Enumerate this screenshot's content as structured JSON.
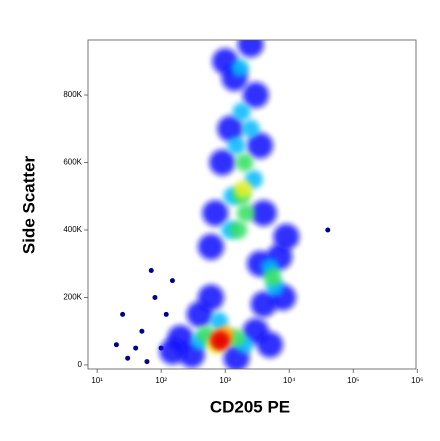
{
  "chart_data": {
    "type": "scatter",
    "x_label": "CD205 PE",
    "y_label": "Side Scatter",
    "xscale": "log",
    "xlim": [
      7.2,
      955000
    ],
    "xticks": [
      {
        "value": 10,
        "label": "10¹"
      },
      {
        "value": 100,
        "label": "10²"
      },
      {
        "value": 1000,
        "label": "10³"
      },
      {
        "value": 10000,
        "label": "10⁴"
      },
      {
        "value": 100000,
        "label": "10⁵"
      },
      {
        "value": 1000000,
        "label": "10⁶"
      }
    ],
    "ylim": [
      -12000,
      963000
    ],
    "yticks": [
      0,
      {
        "value": 200000,
        "label": "200K"
      },
      {
        "value": 400000,
        "label": "400K"
      },
      {
        "value": 600000,
        "label": "600K"
      },
      {
        "value": 800000,
        "label": "800K"
      }
    ],
    "x": [
      30,
      50,
      80,
      100,
      40,
      150,
      120,
      20,
      60,
      40000,
      25,
      70,
      1000,
      1400,
      1200,
      900,
      700,
      600,
      3000,
      3500,
      4000,
      2500,
      3500,
      7000,
      8000,
      4000,
      9000,
      200,
      300,
      400,
      3000,
      5000,
      1500,
      150,
      600,
      1700,
      1800,
      1500,
      2500,
      1300,
      1200,
      2800,
      5000,
      6000,
      400,
      2000,
      800,
      2000,
      1800,
      2100,
      1600,
      5500,
      500,
      1500,
      1900,
      700,
      1000,
      800,
      850
    ],
    "values": [
      20000,
      100000,
      200000,
      50000,
      50000,
      250000,
      150000,
      60000,
      10000,
      400000,
      150000,
      280000,
      900000,
      850000,
      700000,
      600000,
      450000,
      350000,
      800000,
      650000,
      450000,
      950000,
      300000,
      320000,
      200000,
      180000,
      380000,
      80000,
      30000,
      150000,
      100000,
      60000,
      20000,
      40000,
      200000,
      880000,
      750000,
      650000,
      700000,
      500000,
      400000,
      550000,
      290000,
      230000,
      70000,
      60000,
      130000,
      600000,
      500000,
      450000,
      400000,
      260000,
      90000,
      80000,
      520000,
      60000,
      90000,
      75000,
      70000
    ],
    "point_colors": [
      "#00008b",
      "#00008b",
      "#00008b",
      "#00008b",
      "#00008b",
      "#00008b",
      "#00008b",
      "#00008b",
      "#00008b",
      "#00008b",
      "#00008b",
      "#00008b",
      "#1010ff",
      "#1010ff",
      "#1010ff",
      "#1010ff",
      "#1010ff",
      "#1010ff",
      "#1010ff",
      "#1010ff",
      "#1010ff",
      "#1010ff",
      "#1010ff",
      "#1010ff",
      "#1010ff",
      "#1010ff",
      "#1010ff",
      "#1010ff",
      "#1010ff",
      "#1010ff",
      "#1010ff",
      "#1010ff",
      "#1010ff",
      "#1010ff",
      "#1010ff",
      "#00b8ff",
      "#00b8ff",
      "#00b8ff",
      "#00b8ff",
      "#00b8ff",
      "#00b8ff",
      "#00b8ff",
      "#00b8ff",
      "#00b8ff",
      "#00b8ff",
      "#00b8ff",
      "#00b8ff",
      "#30e060",
      "#30e060",
      "#30e060",
      "#30e060",
      "#30e060",
      "#30e060",
      "#30e060",
      "#e8f020",
      "#e8f020",
      "#ffa000",
      "#ff3000",
      "#e00000"
    ]
  }
}
